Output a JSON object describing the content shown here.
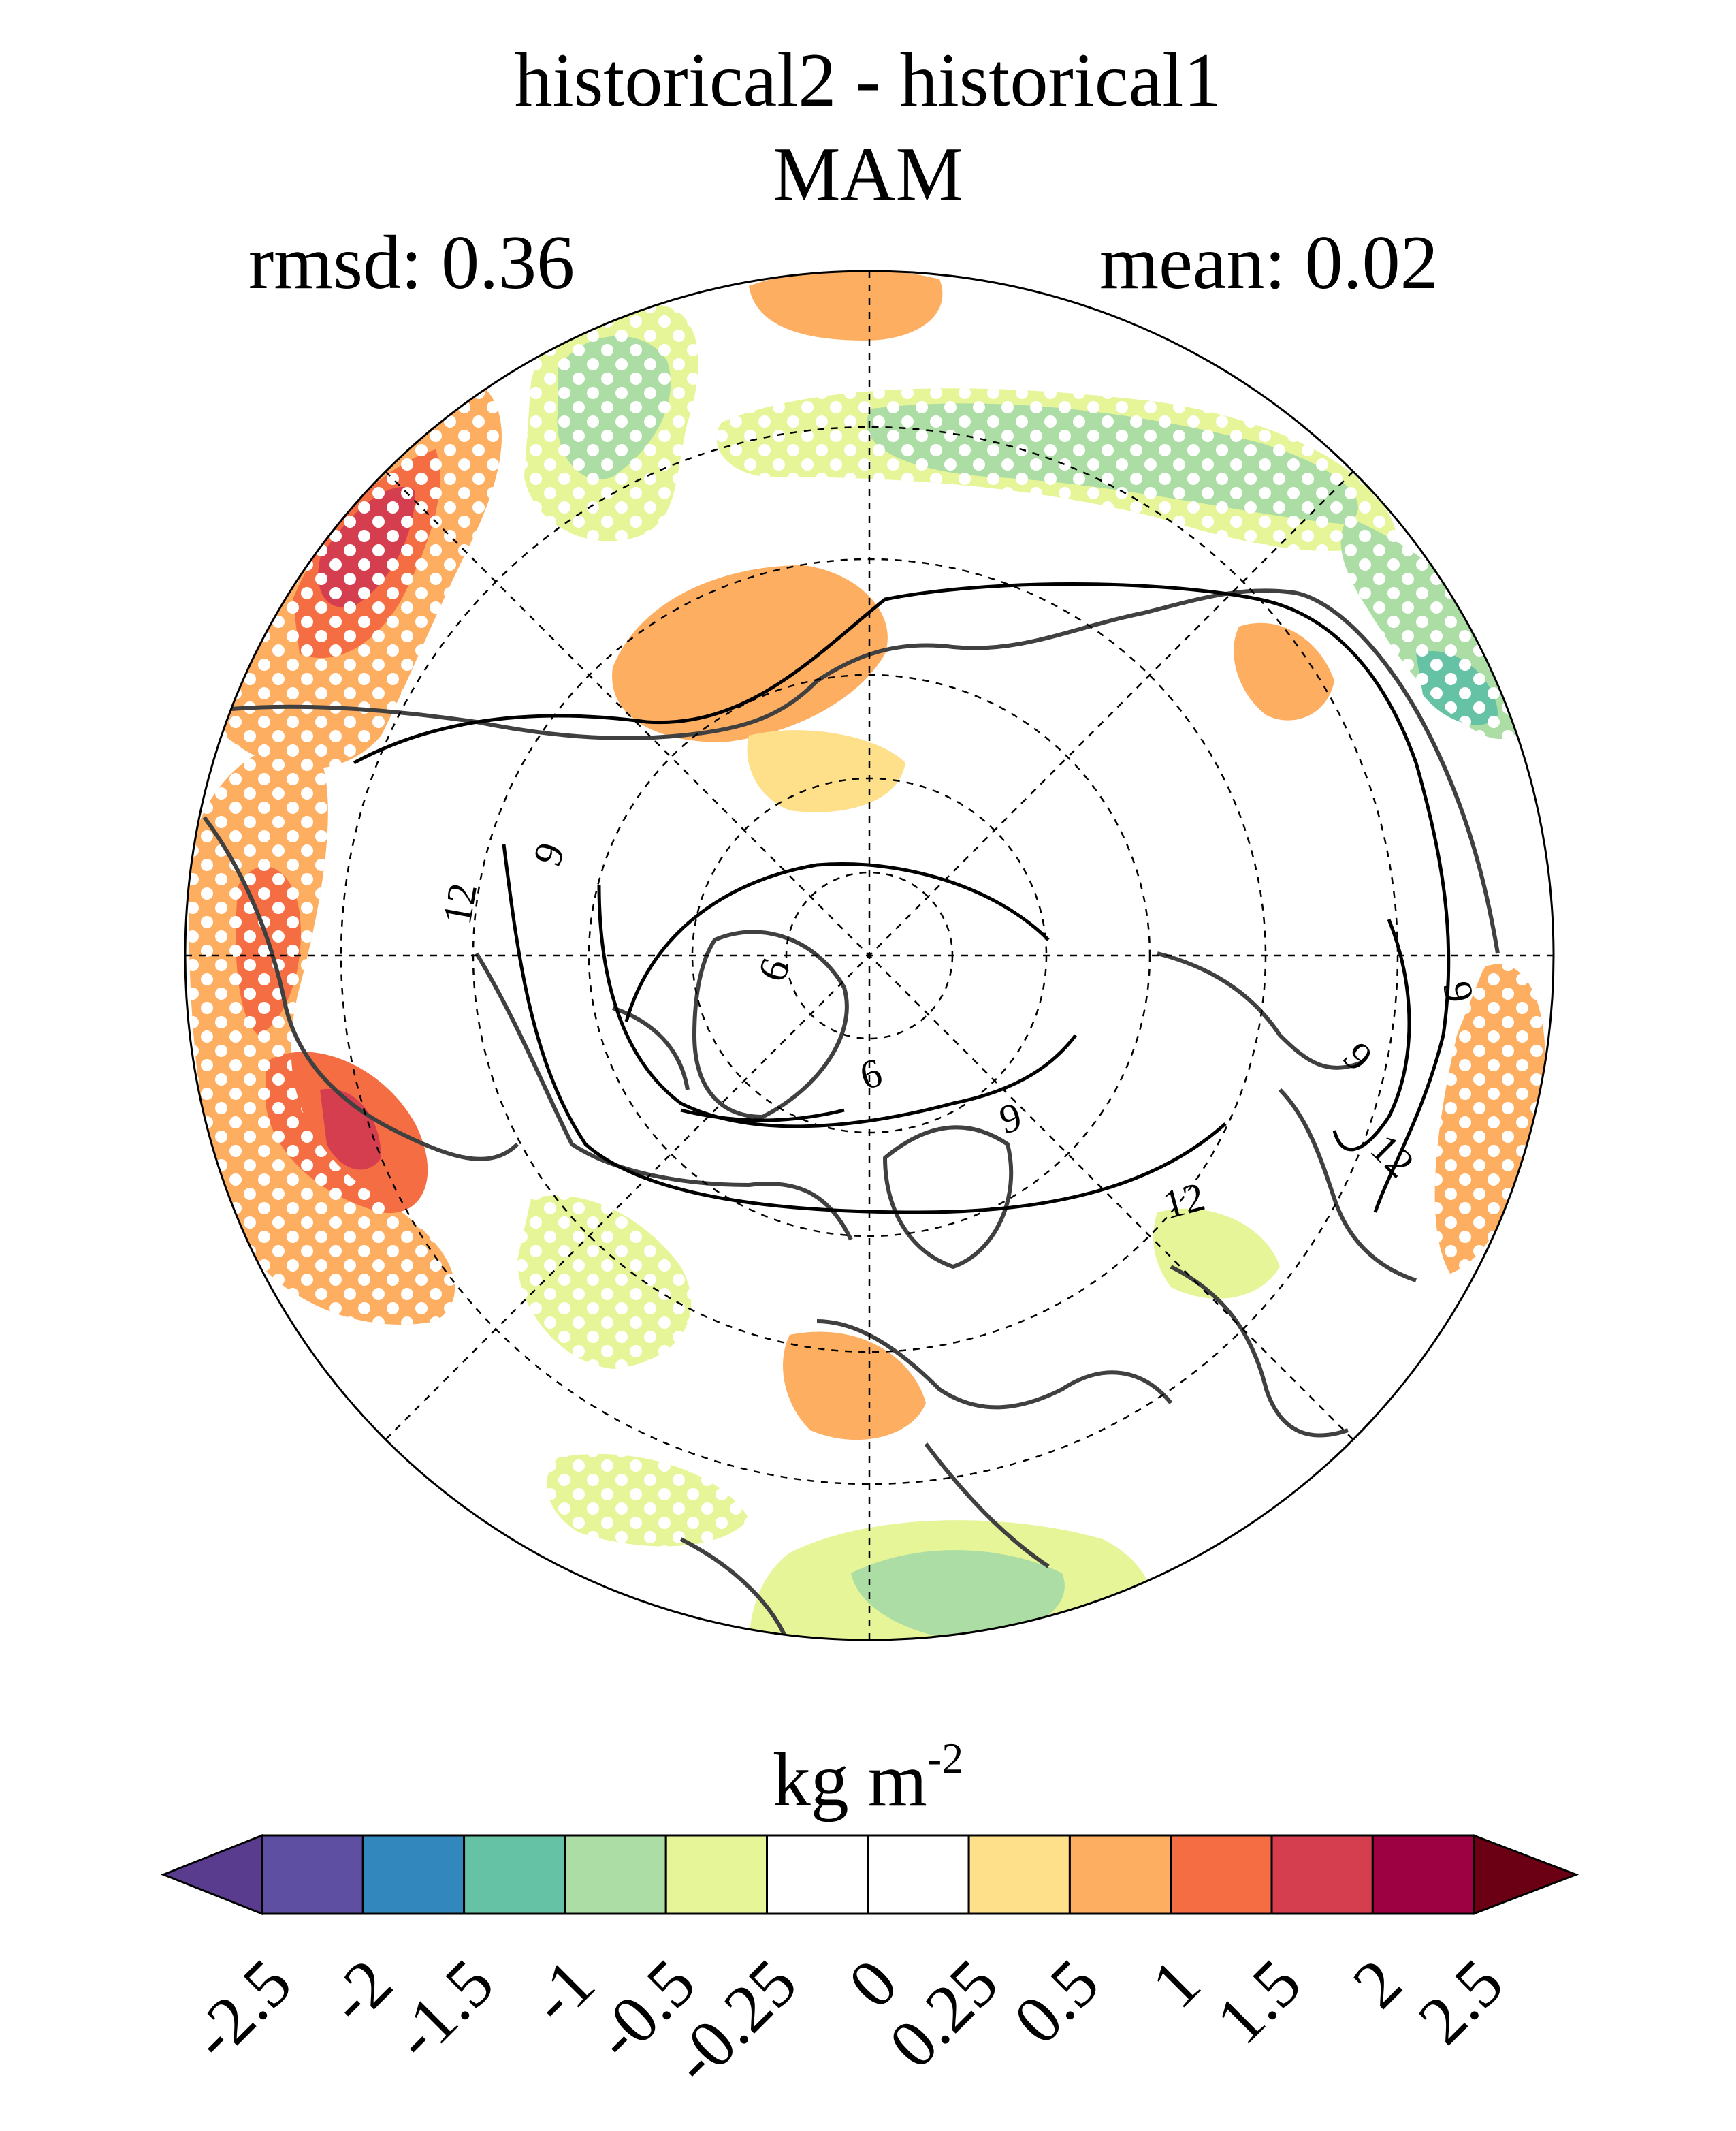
{
  "title": "historical2 - historical1",
  "season": "MAM",
  "stats": {
    "rmsd_label": "rmsd: 0.36",
    "mean_label": "mean: 0.02"
  },
  "units": {
    "base": "kg m",
    "exponent": "-2"
  },
  "contour_labels": [
    "12",
    "9",
    "6",
    "9",
    "6",
    "9",
    "12",
    "12",
    "9"
  ],
  "colorbar": {
    "ticks": [
      "-2.5",
      "-2",
      "-1.5",
      "-1",
      "-0.5",
      "-0.25",
      "0",
      "0.25",
      "0.5",
      "1",
      "1.5",
      "2",
      "2.5"
    ],
    "colors": [
      "#5e4fa2",
      "#3288bd",
      "#66c2a5",
      "#abdda4",
      "#e6f598",
      "#ffffff",
      "#ffffff",
      "#fee08b",
      "#fdae61",
      "#f46d43",
      "#d53e4f",
      "#9e0142"
    ],
    "under_color": "#5a3c8e",
    "over_color": "#6b0014"
  },
  "map": {
    "projection": "north polar stereographic",
    "stippling": "white dots mark significant differences"
  }
}
